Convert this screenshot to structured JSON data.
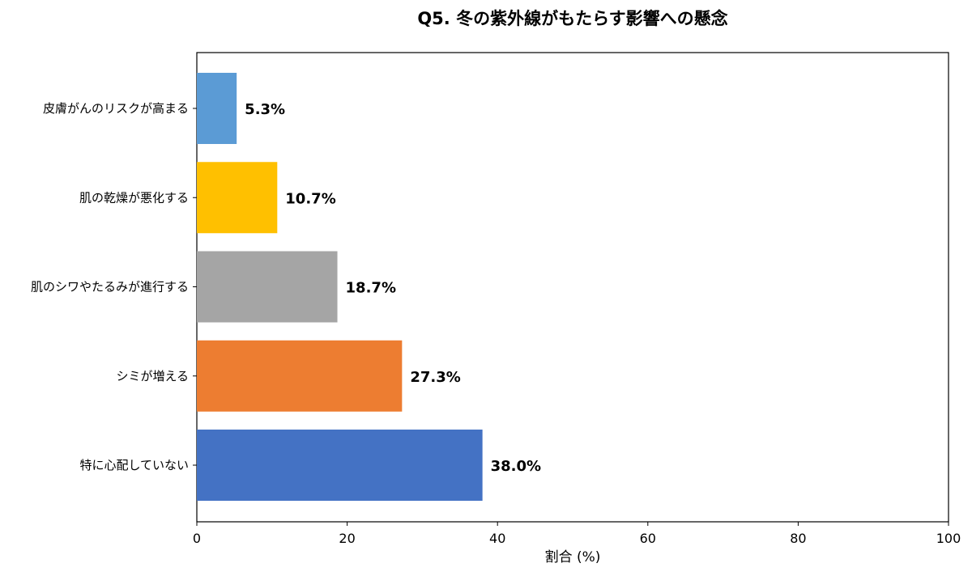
{
  "chart_data": {
    "type": "bar",
    "orientation": "horizontal",
    "title": "Q5. 冬の紫外線がもたらす影響への懸念",
    "xlabel": "割合 (%)",
    "ylabel": "",
    "xlim": [
      0,
      100
    ],
    "xticks": [
      0,
      20,
      40,
      60,
      80,
      100
    ],
    "grid": false,
    "categories": [
      "皮膚がんのリスクが高まる",
      "肌の乾燥が悪化する",
      "肌のシワやたるみが進行する",
      "シミが増える",
      "特に心配していない"
    ],
    "values": [
      5.3,
      10.7,
      18.7,
      27.3,
      38.0
    ],
    "value_labels": [
      "5.3%",
      "10.7%",
      "18.7%",
      "27.3%",
      "38.0%"
    ],
    "colors": [
      "#5B9BD5",
      "#FFC000",
      "#A5A5A5",
      "#ED7D31",
      "#4472C4"
    ]
  }
}
